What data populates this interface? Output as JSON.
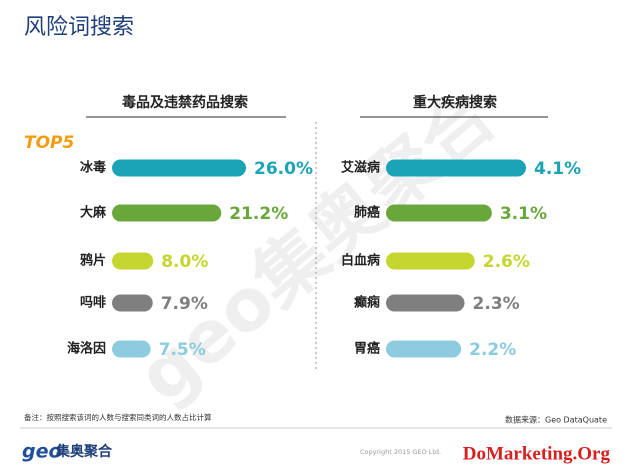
{
  "title": "风险词搜索",
  "badge": "TOP5",
  "footnote": "备注：按照搜索该词的人数与搜索同类词的人数占比计算",
  "source": "数据来源：Geo DataQuate",
  "logo": {
    "mark": "geo",
    "name": "集奥聚合"
  },
  "copyright": "Copyright 2015 GEO Ltd.",
  "watermark": "DoMarketing.Org",
  "background_mark": "geo集奥聚合",
  "chart_data": [
    {
      "type": "bar",
      "orientation": "horizontal",
      "title": "毒品及违禁药品搜索",
      "categories": [
        "冰毒",
        "大麻",
        "鸦片",
        "吗啡",
        "海洛因"
      ],
      "values": [
        26.0,
        21.2,
        8.0,
        7.9,
        7.5
      ],
      "value_labels": [
        "26.0%",
        "21.2%",
        "8.0%",
        "7.9%",
        "7.5%"
      ],
      "colors": [
        "#1ba3b6",
        "#6aa73b",
        "#c4d62f",
        "#7f7f7f",
        "#8ccbe0"
      ]
    },
    {
      "type": "bar",
      "orientation": "horizontal",
      "title": "重大疾病搜索",
      "categories": [
        "艾滋病",
        "肺癌",
        "白血病",
        "癫痫",
        "胃癌"
      ],
      "values": [
        4.1,
        3.1,
        2.6,
        2.3,
        2.2
      ],
      "value_labels": [
        "4.1%",
        "3.1%",
        "2.6%",
        "2.3%",
        "2.2%"
      ],
      "colors": [
        "#1ba3b6",
        "#6aa73b",
        "#c4d62f",
        "#7f7f7f",
        "#8ccbe0"
      ]
    }
  ]
}
